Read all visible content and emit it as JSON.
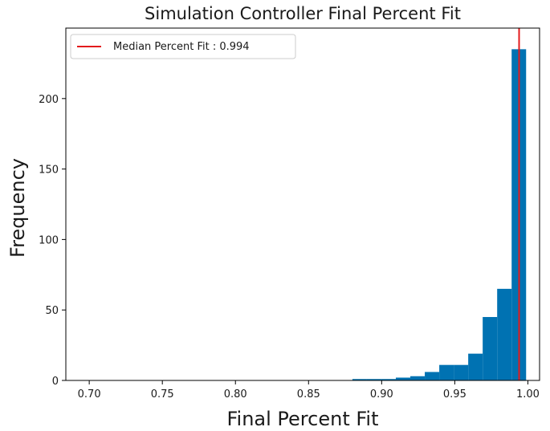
{
  "chart_data": {
    "type": "bar",
    "title": "Simulation Controller Final Percent Fit",
    "xlabel": "Final Percent Fit",
    "ylabel": "Frequency",
    "xlim": [
      0.684,
      1.008
    ],
    "ylim": [
      0,
      250
    ],
    "xticks": [
      {
        "value": 0.7,
        "label": "0.70"
      },
      {
        "value": 0.75,
        "label": "0.75"
      },
      {
        "value": 0.8,
        "label": "0.80"
      },
      {
        "value": 0.85,
        "label": "0.85"
      },
      {
        "value": 0.9,
        "label": "0.90"
      },
      {
        "value": 0.95,
        "label": "0.95"
      },
      {
        "value": 1.0,
        "label": "1.00"
      }
    ],
    "yticks": [
      {
        "value": 0,
        "label": "0"
      },
      {
        "value": 50,
        "label": "50"
      },
      {
        "value": 100,
        "label": "100"
      },
      {
        "value": 150,
        "label": "150"
      },
      {
        "value": 200,
        "label": "200"
      }
    ],
    "grid": false,
    "legend_position": "top-left",
    "bar_color": "#0072b2",
    "median_line": {
      "value": 0.994,
      "color": "#e31a1c",
      "legend_label": "Median Percent Fit : 0.994"
    },
    "bins": [
      {
        "x0": 0.88,
        "x1": 0.8899,
        "count": 1
      },
      {
        "x0": 0.8899,
        "x1": 0.8998,
        "count": 1
      },
      {
        "x0": 0.8998,
        "x1": 0.9097,
        "count": 1
      },
      {
        "x0": 0.9097,
        "x1": 0.9196,
        "count": 2
      },
      {
        "x0": 0.9196,
        "x1": 0.9295,
        "count": 3
      },
      {
        "x0": 0.9295,
        "x1": 0.9394,
        "count": 6
      },
      {
        "x0": 0.9394,
        "x1": 0.9493,
        "count": 11
      },
      {
        "x0": 0.9493,
        "x1": 0.9592,
        "count": 11
      },
      {
        "x0": 0.9592,
        "x1": 0.9691,
        "count": 19
      },
      {
        "x0": 0.9691,
        "x1": 0.979,
        "count": 45
      },
      {
        "x0": 0.979,
        "x1": 0.9889,
        "count": 65
      },
      {
        "x0": 0.9889,
        "x1": 0.9988,
        "count": 235
      }
    ]
  }
}
